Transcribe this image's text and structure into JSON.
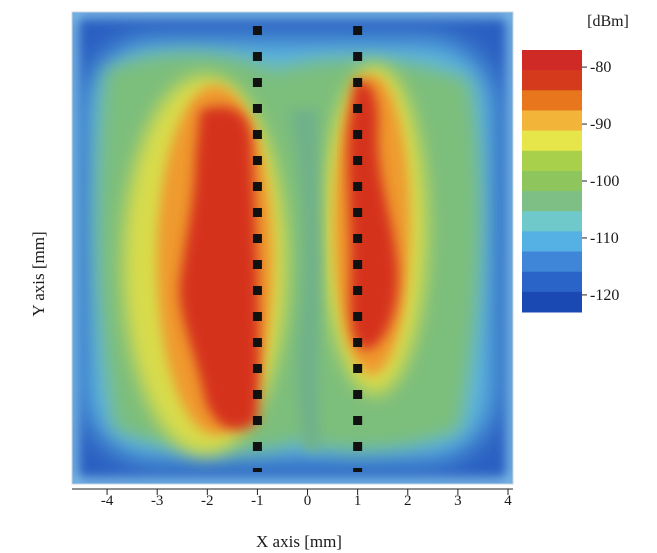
{
  "chart_data": {
    "type": "heatmap",
    "title": "",
    "xlabel": "X axis [mm]",
    "ylabel": "Y axis [mm]",
    "xlim": [
      -4.7,
      4.1
    ],
    "x_ticks": [
      "-4",
      "-3",
      "-2",
      "-1",
      "0",
      "1",
      "2",
      "3",
      "4"
    ],
    "y_ticks": [],
    "colorbar": {
      "unit": "[dBm]",
      "ticks": [
        "-80",
        "-90",
        "-100",
        "-110",
        "-120"
      ],
      "range": [
        -123,
        -77
      ],
      "colors": [
        "#1b49b3",
        "#2a64c8",
        "#3f86d8",
        "#55b0e4",
        "#6fc8c9",
        "#7ebf86",
        "#8ec55c",
        "#a8d04a",
        "#e6e64b",
        "#f2b539",
        "#e8761d",
        "#d63a1c",
        "#cf2a25"
      ]
    },
    "conductor_lines": [
      {
        "x": -1,
        "style": "dashed",
        "color": "#111111"
      },
      {
        "x": 1,
        "style": "dashed",
        "color": "#111111"
      }
    ],
    "peak_level": "-80",
    "background_level": "-120"
  }
}
